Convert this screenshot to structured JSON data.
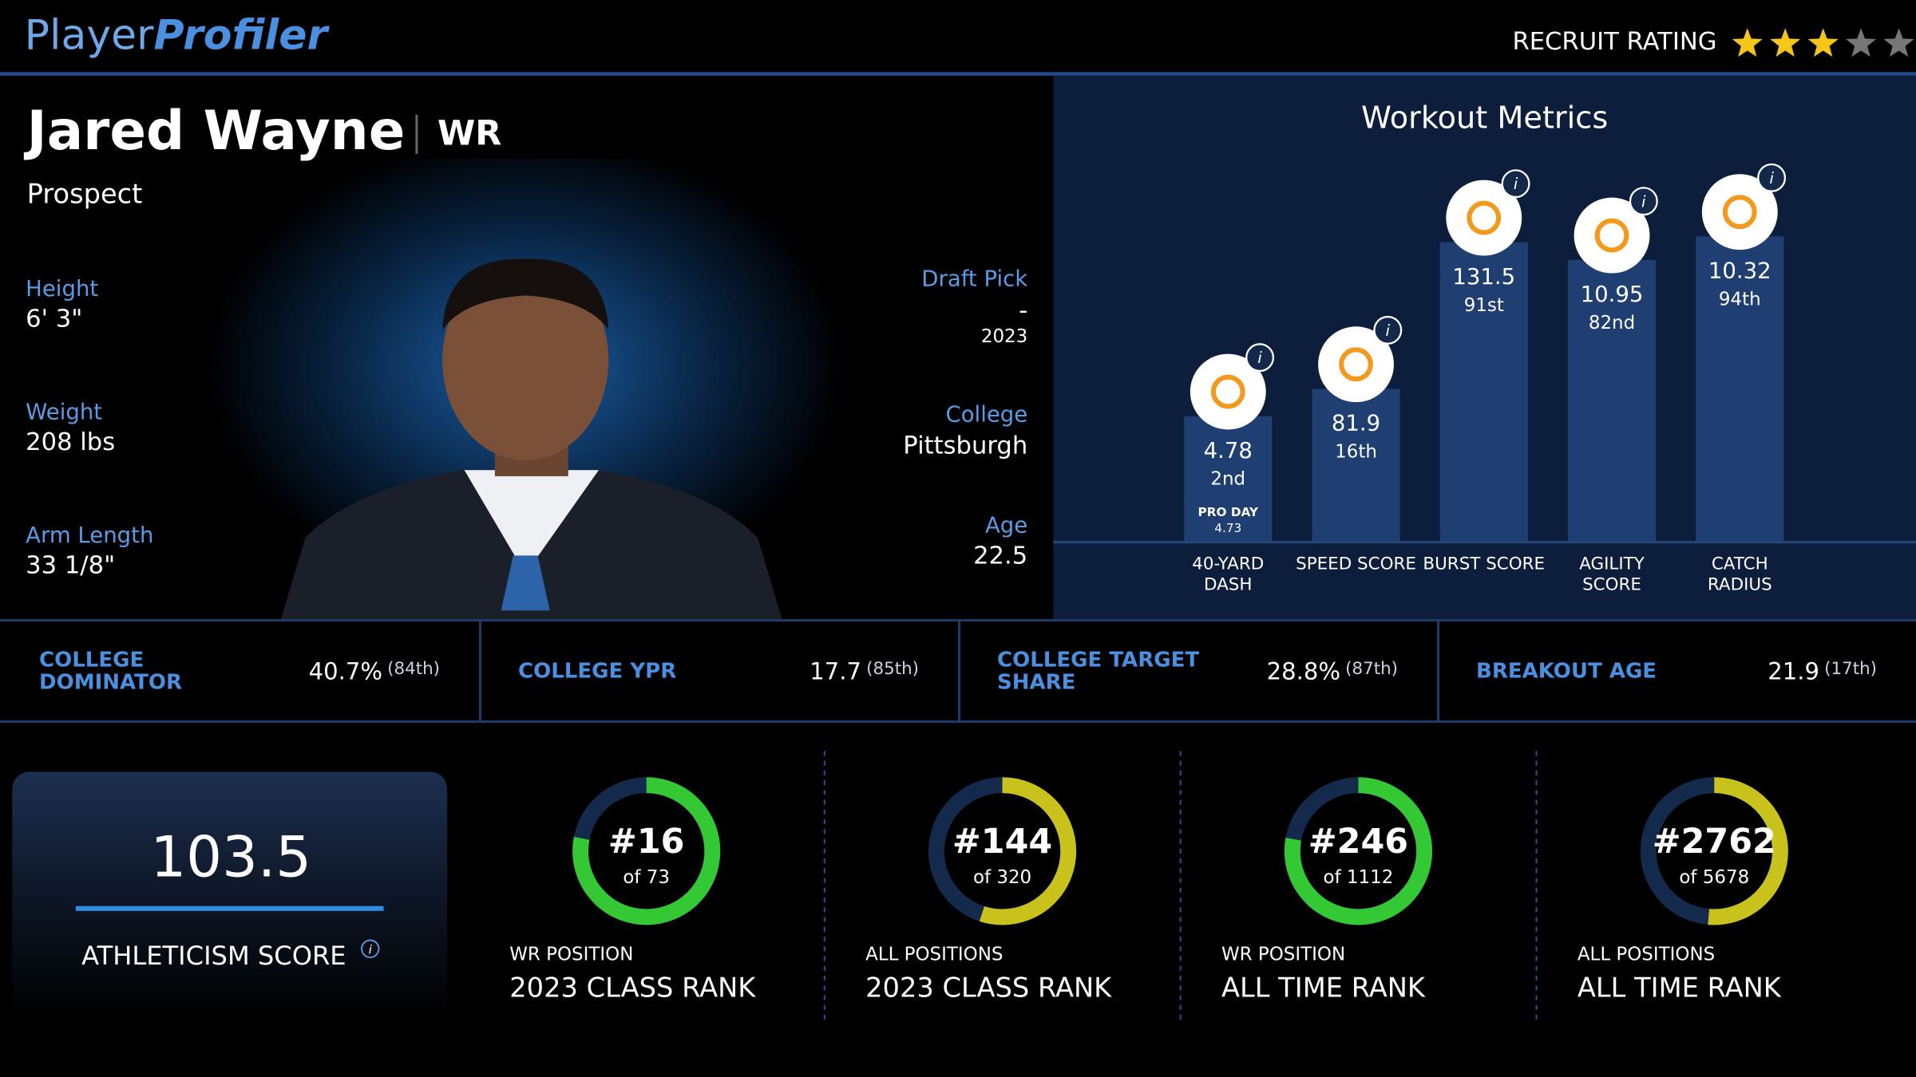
{
  "header": {
    "brand_first": "Player",
    "brand_second": "Profiler",
    "rating_label": "RECRUIT RATING",
    "rating": 3,
    "rating_max": 5
  },
  "player": {
    "name": "Jared Wayne",
    "position": "WR",
    "status": "Prospect",
    "left_stats": [
      {
        "label": "Height",
        "value": "6' 3\""
      },
      {
        "label": "Weight",
        "value": "208 lbs"
      },
      {
        "label": "Arm Length",
        "value": "33 1/8\""
      }
    ],
    "draft": {
      "label": "Draft Pick",
      "value": "-",
      "year": "2023"
    },
    "college": {
      "label": "College",
      "value": "Pittsburgh"
    },
    "age": {
      "label": "Age",
      "value": "22.5"
    }
  },
  "workout": {
    "title": "Workout Metrics",
    "color": "#1f3e72",
    "metrics": [
      {
        "name": "40-YARD DASH",
        "value": "4.78",
        "percentile": 2,
        "percentile_label": "2nd",
        "note_label": "PRO DAY",
        "note_value": "4.73"
      },
      {
        "name": "SPEED SCORE",
        "value": "81.9",
        "percentile": 16,
        "percentile_label": "16th"
      },
      {
        "name": "BURST SCORE",
        "value": "131.5",
        "percentile": 91,
        "percentile_label": "91st"
      },
      {
        "name": "AGILITY SCORE",
        "value": "10.95",
        "percentile": 82,
        "percentile_label": "82nd"
      },
      {
        "name": "CATCH RADIUS",
        "value": "10.32",
        "percentile": 94,
        "percentile_label": "94th"
      }
    ]
  },
  "college_stats": [
    {
      "label": "COLLEGE DOMINATOR",
      "value": "40.7%",
      "rank": "(84th)"
    },
    {
      "label": "COLLEGE YPR",
      "value": "17.7",
      "rank": "(85th)"
    },
    {
      "label": "COLLEGE TARGET SHARE",
      "value": "28.8%",
      "rank": "(87th)"
    },
    {
      "label": "BREAKOUT AGE",
      "value": "21.9",
      "rank": "(17th)"
    }
  ],
  "athleticism": {
    "score": "103.5",
    "label": "ATHLETICISM SCORE"
  },
  "ranks": [
    {
      "rank": 16,
      "rank_label": "#16",
      "total": 73,
      "total_label": "of 73",
      "color": "#34c934",
      "scope": "WR POSITION",
      "title": "2023 CLASS RANK"
    },
    {
      "rank": 144,
      "rank_label": "#144",
      "total": 320,
      "total_label": "of 320",
      "color": "#c9c21c",
      "scope": "ALL POSITIONS",
      "title": "2023 CLASS RANK"
    },
    {
      "rank": 246,
      "rank_label": "#246",
      "total": 1112,
      "total_label": "of 1112",
      "color": "#34c934",
      "scope": "WR POSITION",
      "title": "ALL TIME RANK"
    },
    {
      "rank": 2762,
      "rank_label": "#2762",
      "total": 5678,
      "total_label": "of 5678",
      "color": "#c9c21c",
      "scope": "ALL POSITIONS",
      "title": "ALL TIME RANK"
    }
  ]
}
